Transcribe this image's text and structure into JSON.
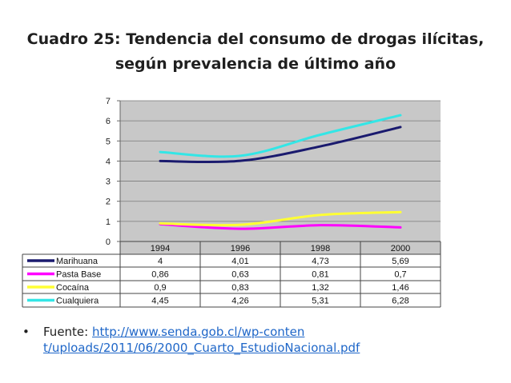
{
  "title": {
    "line1": "Cuadro 25: Tendencia del consumo de drogas ilícitas,",
    "line2": "según prevalencia de último año"
  },
  "chart_data": {
    "type": "line",
    "x": [
      "1994",
      "1996",
      "1998",
      "2000"
    ],
    "yticks": [
      "0",
      "1",
      "2",
      "3",
      "4",
      "5",
      "6",
      "7"
    ],
    "ylim": [
      0,
      7
    ],
    "grid": true,
    "legend": "table-below",
    "series": [
      {
        "name": "Marihuana",
        "values": [
          4,
          4.01,
          4.73,
          5.69
        ],
        "labels": [
          "4",
          "4,01",
          "4,73",
          "5,69"
        ],
        "color": "#1a1a6e"
      },
      {
        "name": "Pasta Base",
        "values": [
          0.86,
          0.63,
          0.81,
          0.7
        ],
        "labels": [
          "0,86",
          "0,63",
          "0,81",
          "0,7"
        ],
        "color": "#ff00ff"
      },
      {
        "name": "Cocaína",
        "values": [
          0.9,
          0.83,
          1.32,
          1.46
        ],
        "labels": [
          "0,9",
          "0,83",
          "1,32",
          "1,46"
        ],
        "color": "#ffff33"
      },
      {
        "name": "Cualquiera",
        "values": [
          4.45,
          4.26,
          5.31,
          6.28
        ],
        "labels": [
          "4,45",
          "4,26",
          "5,31",
          "6,28"
        ],
        "color": "#33e6e6"
      }
    ]
  },
  "source": {
    "bullet": "•",
    "label": "Fuente: ",
    "link_line1": "http://www.senda.gob.cl/wp-conten",
    "line2": "t/uploads/2011/06/2000_Cuarto_EstudioNacional.pdf"
  }
}
